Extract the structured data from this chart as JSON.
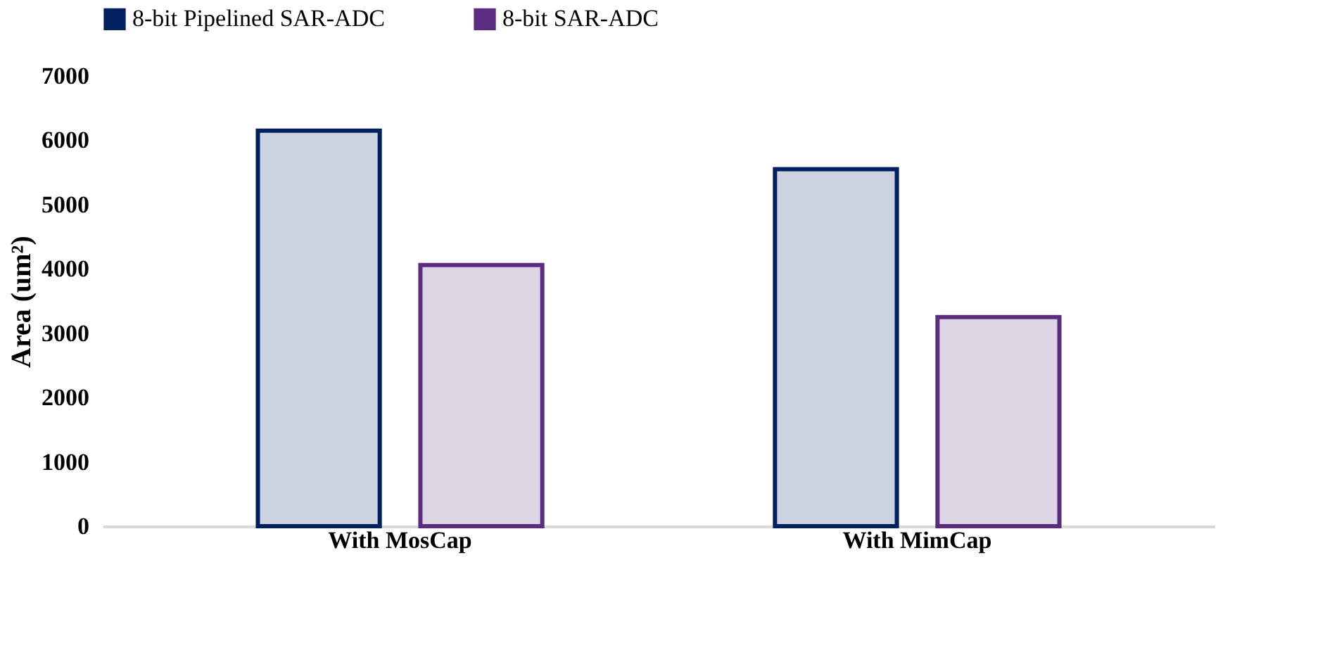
{
  "chart_data": {
    "type": "bar",
    "ylabel": "Area (um²)",
    "categories": [
      "With MosCap",
      "With MimCap"
    ],
    "series": [
      {
        "name": "8-bit Pipelined SAR-ADC",
        "color": "#002060",
        "values": [
          6150,
          5550
        ]
      },
      {
        "name": "8-bit SAR-ADC",
        "color": "#5b2c7f",
        "values": [
          4060,
          3250
        ]
      }
    ],
    "ylim": [
      0,
      7000
    ],
    "yticks": [
      0,
      1000,
      2000,
      3000,
      4000,
      5000,
      6000,
      7000
    ],
    "grid": false,
    "legend": "top"
  }
}
